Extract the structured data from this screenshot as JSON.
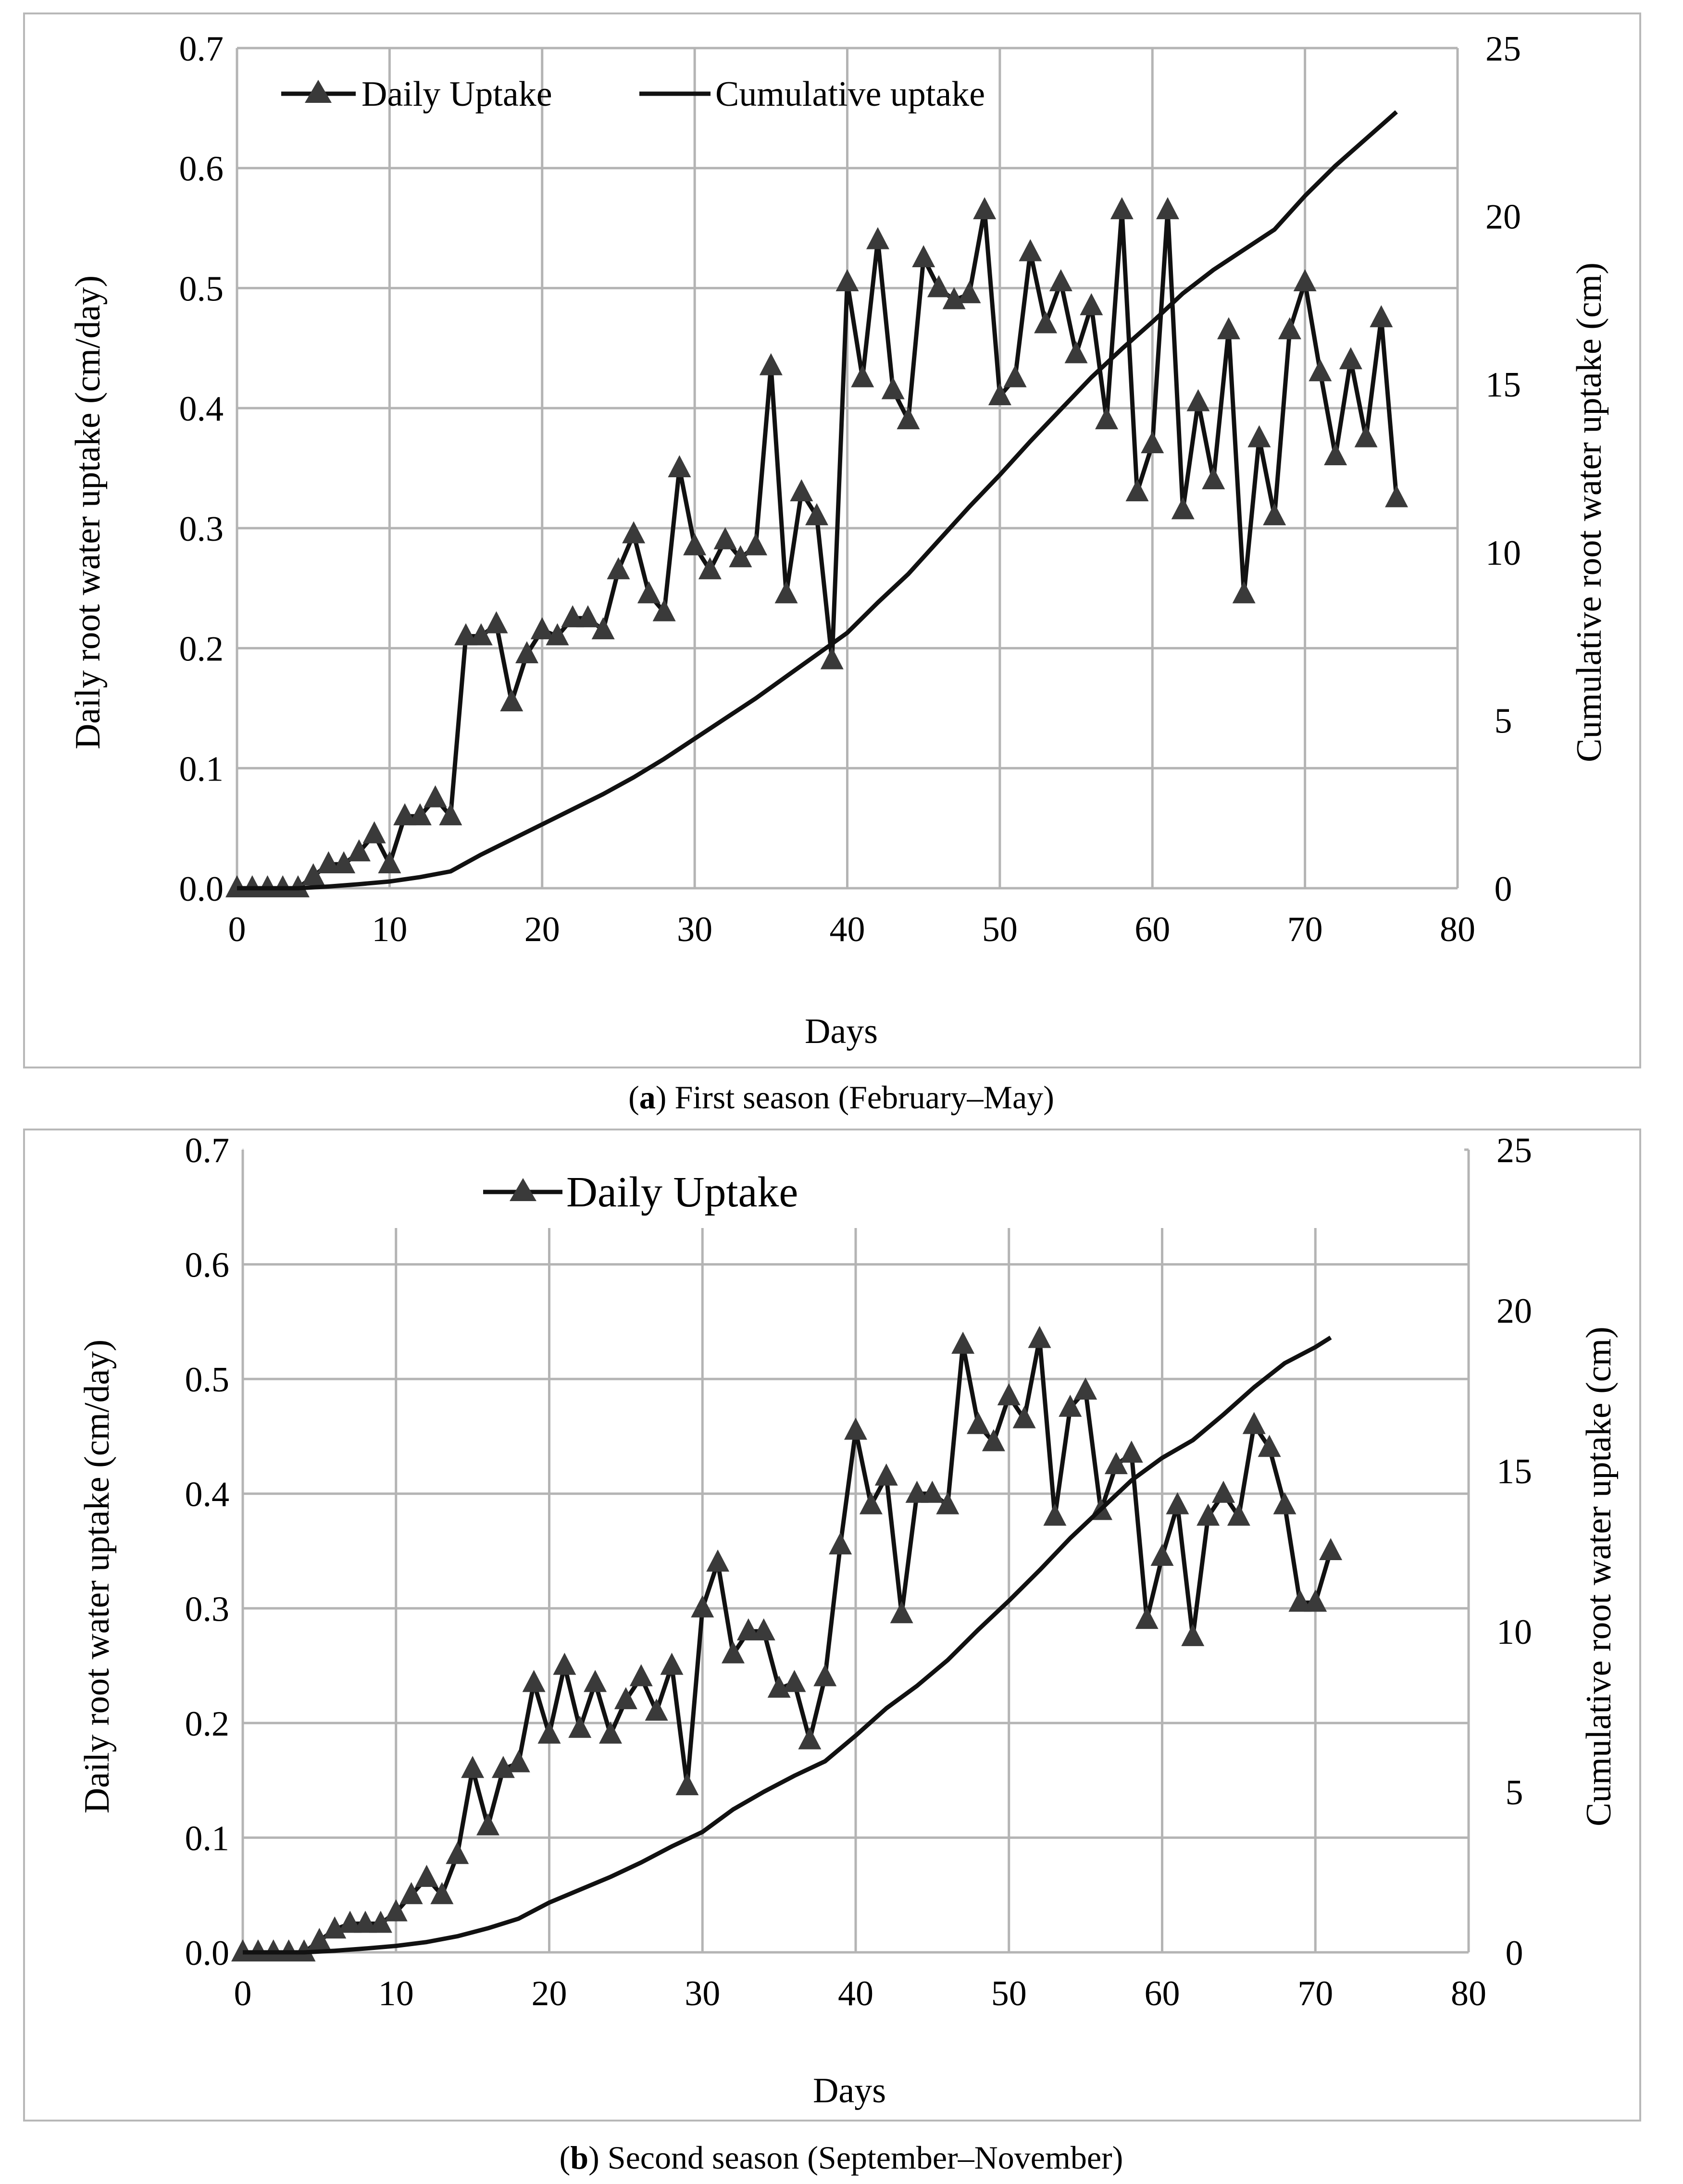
{
  "chart_data": [
    {
      "type": "line",
      "caption_label": "a",
      "caption_text": ") First season (February–May)",
      "xlabel": "Days",
      "ylabel_left": "Daily root water uptake (cm/day)",
      "ylabel_right": "Cumulative root water uptake (cm)",
      "xlim": [
        0,
        80
      ],
      "ylim_left": [
        0,
        0.7
      ],
      "ylim_right": [
        0,
        25
      ],
      "xticks": [
        "0",
        "10",
        "20",
        "30",
        "40",
        "50",
        "60",
        "70",
        "80"
      ],
      "yticks_left": [
        "0.0",
        "0.1",
        "0.2",
        "0.3",
        "0.4",
        "0.5",
        "0.6",
        "0.7"
      ],
      "yticks_right": [
        "0",
        "5",
        "10",
        "15",
        "20",
        "25"
      ],
      "legend": [
        "Daily Uptake",
        "Cumulative uptake"
      ],
      "series": [
        {
          "name": "Daily Uptake",
          "axis": "left",
          "marker": "triangle",
          "x": [
            0,
            1,
            2,
            3,
            4,
            5,
            6,
            7,
            8,
            9,
            10,
            11,
            12,
            13,
            14,
            15,
            16,
            17,
            18,
            19,
            20,
            21,
            22,
            23,
            24,
            25,
            26,
            27,
            28,
            29,
            30,
            31,
            32,
            33,
            34,
            35,
            36,
            37,
            38,
            39,
            40,
            41,
            42,
            43,
            44,
            45,
            46,
            47,
            48,
            49,
            50,
            51,
            52,
            53,
            54,
            55,
            56,
            57,
            58,
            59,
            60,
            61,
            62,
            63,
            64,
            65,
            66,
            67,
            68,
            69,
            70,
            71,
            72,
            73,
            74,
            75,
            76
          ],
          "values": [
            0,
            0,
            0,
            0,
            0,
            0.01,
            0.02,
            0.02,
            0.03,
            0.045,
            0.02,
            0.06,
            0.06,
            0.075,
            0.06,
            0.21,
            0.21,
            0.22,
            0.155,
            0.195,
            0.215,
            0.21,
            0.225,
            0.225,
            0.215,
            0.265,
            0.295,
            0.245,
            0.23,
            0.35,
            0.285,
            0.265,
            0.29,
            0.275,
            0.285,
            0.435,
            0.245,
            0.33,
            0.31,
            0.19,
            0.505,
            0.425,
            0.54,
            0.415,
            0.39,
            0.525,
            0.5,
            0.49,
            0.495,
            0.565,
            0.41,
            0.425,
            0.53,
            0.47,
            0.505,
            0.445,
            0.485,
            0.39,
            0.565,
            0.33,
            0.37,
            0.565,
            0.315,
            0.405,
            0.34,
            0.465,
            0.245,
            0.375,
            0.31,
            0.465,
            0.505,
            0.43,
            0.36,
            0.44,
            0.375,
            0.475,
            0.325
          ]
        },
        {
          "name": "Cumulative uptake",
          "axis": "right",
          "marker": "none",
          "x": [
            0,
            2,
            4,
            6,
            8,
            10,
            12,
            14,
            16,
            18,
            20,
            22,
            24,
            26,
            28,
            30,
            32,
            34,
            36,
            38,
            40,
            42,
            44,
            46,
            48,
            50,
            52,
            54,
            56,
            58,
            60,
            62,
            64,
            66,
            68,
            70,
            72,
            74,
            76
          ],
          "values": [
            0,
            0,
            0,
            0.05,
            0.12,
            0.2,
            0.33,
            0.5,
            1,
            1.45,
            1.9,
            2.35,
            2.8,
            3.3,
            3.85,
            4.45,
            5.05,
            5.65,
            6.3,
            6.95,
            7.6,
            8.5,
            9.35,
            10.35,
            11.35,
            12.3,
            13.3,
            14.25,
            15.2,
            16.05,
            16.85,
            17.7,
            18.4,
            19.0,
            19.6,
            20.6,
            21.5,
            22.3,
            23.1
          ]
        }
      ]
    },
    {
      "type": "line",
      "caption_label": "b",
      "caption_text": ") Second season (September–November)",
      "xlabel": "Days",
      "ylabel_left": "Daily root water uptake (cm/day)",
      "ylabel_right": "Cumulative root water uptake (cm)",
      "xlim": [
        0,
        80
      ],
      "ylim_left": [
        0,
        0.7
      ],
      "ylim_right": [
        0,
        25
      ],
      "xticks": [
        "0",
        "10",
        "20",
        "30",
        "40",
        "50",
        "60",
        "70",
        "80"
      ],
      "yticks_left": [
        "0.0",
        "0.1",
        "0.2",
        "0.3",
        "0.4",
        "0.5",
        "0.6",
        "0.7"
      ],
      "yticks_right": [
        "0",
        "5",
        "10",
        "15",
        "20",
        "25"
      ],
      "legend": [
        "Daily Uptake"
      ],
      "series": [
        {
          "name": "Daily Uptake",
          "axis": "left",
          "marker": "triangle",
          "x": [
            0,
            1,
            2,
            3,
            4,
            5,
            6,
            7,
            8,
            9,
            10,
            11,
            12,
            13,
            14,
            15,
            16,
            17,
            18,
            19,
            20,
            21,
            22,
            23,
            24,
            25,
            26,
            27,
            28,
            29,
            30,
            31,
            32,
            33,
            34,
            35,
            36,
            37,
            38,
            39,
            40,
            41,
            42,
            43,
            44,
            45,
            46,
            47,
            48,
            49,
            50,
            51,
            52,
            53,
            54,
            55,
            56,
            57,
            58,
            59,
            60,
            61,
            62,
            63,
            64,
            65,
            66,
            67,
            68,
            69,
            70,
            71
          ],
          "values": [
            0,
            0,
            0,
            0,
            0,
            0.01,
            0.02,
            0.025,
            0.025,
            0.025,
            0.035,
            0.05,
            0.065,
            0.05,
            0.085,
            0.16,
            0.11,
            0.16,
            0.165,
            0.235,
            0.19,
            0.25,
            0.195,
            0.235,
            0.19,
            0.22,
            0.24,
            0.21,
            0.25,
            0.145,
            0.3,
            0.34,
            0.26,
            0.28,
            0.28,
            0.23,
            0.235,
            0.185,
            0.24,
            0.355,
            0.455,
            0.39,
            0.415,
            0.295,
            0.4,
            0.4,
            0.39,
            0.53,
            0.46,
            0.445,
            0.485,
            0.465,
            0.535,
            0.38,
            0.475,
            0.49,
            0.385,
            0.425,
            0.435,
            0.29,
            0.345,
            0.39,
            0.275,
            0.38,
            0.4,
            0.38,
            0.46,
            0.44,
            0.39,
            0.305,
            0.305,
            0.35
          ]
        },
        {
          "name": "Cumulative uptake",
          "axis": "right",
          "marker": "none",
          "x": [
            0,
            2,
            4,
            6,
            8,
            10,
            12,
            14,
            16,
            18,
            20,
            22,
            24,
            26,
            28,
            30,
            32,
            34,
            36,
            38,
            40,
            42,
            44,
            46,
            48,
            50,
            52,
            54,
            56,
            58,
            60,
            62,
            64,
            66,
            68,
            70,
            71
          ],
          "values": [
            0,
            0,
            0,
            0.05,
            0.12,
            0.2,
            0.32,
            0.5,
            0.75,
            1.05,
            1.55,
            1.95,
            2.35,
            2.8,
            3.3,
            3.75,
            4.45,
            5.0,
            5.5,
            5.95,
            6.75,
            7.6,
            8.3,
            9.1,
            10.05,
            10.95,
            11.9,
            12.9,
            13.8,
            14.7,
            15.4,
            15.95,
            16.75,
            17.6,
            18.35,
            18.85,
            19.15
          ]
        }
      ]
    }
  ]
}
